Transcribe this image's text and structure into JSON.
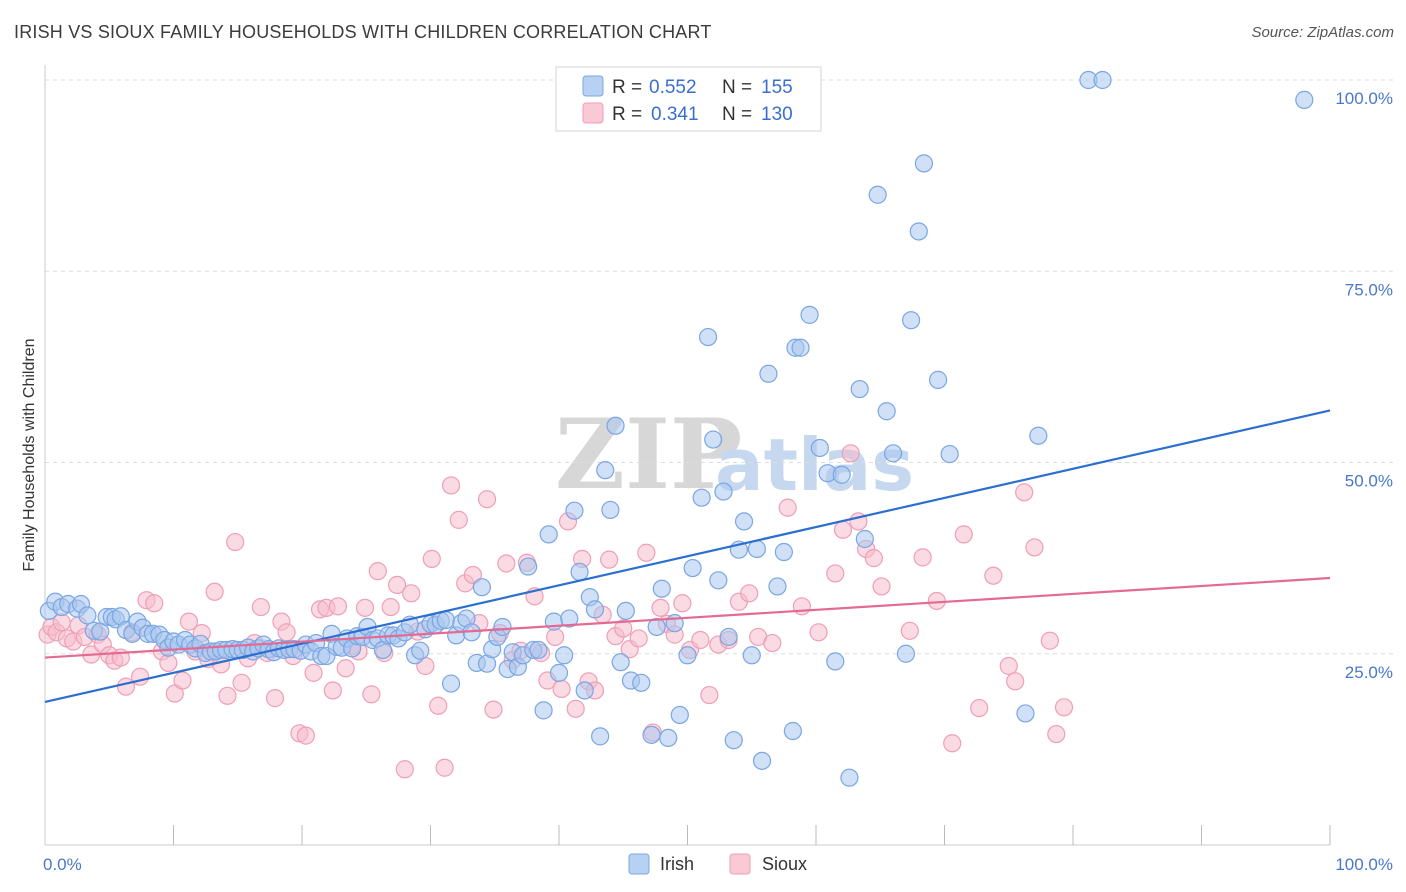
{
  "title": "IRISH VS SIOUX FAMILY HOUSEHOLDS WITH CHILDREN CORRELATION CHART",
  "source": "Source: ZipAtlas.com",
  "watermark": {
    "zip": "ZIP",
    "atlas": "atlas"
  },
  "legend": {
    "rows": [
      {
        "r_label": "R =",
        "r_value": "0.552",
        "n_label": "N =",
        "n_value": "155"
      },
      {
        "r_label": "R =",
        "r_value": "0.341",
        "n_label": "N =",
        "n_value": "130"
      }
    ]
  },
  "colors": {
    "irish_fill": "#a9c6ef",
    "irish_stroke": "#7aa6e3",
    "irish_line": "#2d6fd0",
    "sioux_fill": "#f6bccc",
    "sioux_stroke": "#ef9fb5",
    "sioux_line": "#e46a94",
    "grid": "#dddddd",
    "axis_text": "#4a78c9"
  },
  "chart_data": {
    "type": "scatter",
    "title": "IRISH VS SIOUX FAMILY HOUSEHOLDS WITH CHILDREN CORRELATION CHART",
    "xlabel": "",
    "ylabel": "Family Households with Children",
    "xlim": [
      0,
      100
    ],
    "ylim": [
      0,
      100
    ],
    "x_tick_labels": [
      "0.0%",
      "100.0%"
    ],
    "y_ticks": [
      25,
      50,
      75,
      100
    ],
    "y_tick_labels": [
      "25.0%",
      "50.0%",
      "75.0%",
      "100.0%"
    ],
    "grid": true,
    "legend_position": "top-center",
    "series": [
      {
        "name": "Irish",
        "trend": {
          "x": [
            0,
            100
          ],
          "y": [
            18.7,
            56.8
          ]
        },
        "points": [
          [
            0.3,
            30.6
          ],
          [
            0.8,
            31.8
          ],
          [
            1.3,
            31.1
          ],
          [
            1.8,
            31.5
          ],
          [
            2.5,
            30.9
          ],
          [
            2.8,
            31.5
          ],
          [
            3.3,
            30.0
          ],
          [
            3.8,
            28.0
          ],
          [
            4.3,
            27.9
          ],
          [
            4.8,
            29.8
          ],
          [
            5.2,
            29.8
          ],
          [
            5.5,
            29.5
          ],
          [
            5.9,
            29.9
          ],
          [
            6.3,
            28.1
          ],
          [
            6.8,
            27.6
          ],
          [
            7.2,
            29.2
          ],
          [
            7.6,
            28.4
          ],
          [
            8.0,
            27.6
          ],
          [
            8.4,
            27.6
          ],
          [
            8.9,
            27.5
          ],
          [
            9.3,
            26.8
          ],
          [
            9.6,
            25.8
          ],
          [
            10.0,
            26.6
          ],
          [
            10.4,
            26.2
          ],
          [
            10.9,
            26.8
          ],
          [
            11.3,
            26.2
          ],
          [
            11.7,
            25.7
          ],
          [
            12.1,
            26.3
          ],
          [
            12.5,
            25.1
          ],
          [
            12.9,
            25.3
          ],
          [
            13.3,
            25.3
          ],
          [
            13.7,
            25.5
          ],
          [
            14.1,
            25.5
          ],
          [
            14.6,
            25.6
          ],
          [
            15.0,
            25.5
          ],
          [
            15.4,
            25.5
          ],
          [
            15.8,
            25.8
          ],
          [
            16.2,
            25.3
          ],
          [
            16.6,
            25.7
          ],
          [
            17.0,
            26.2
          ],
          [
            17.4,
            25.6
          ],
          [
            17.8,
            25.2
          ],
          [
            18.2,
            25.7
          ],
          [
            18.6,
            25.5
          ],
          [
            19.0,
            25.6
          ],
          [
            19.4,
            25.6
          ],
          [
            19.9,
            25.4
          ],
          [
            20.3,
            26.2
          ],
          [
            20.7,
            25.3
          ],
          [
            21.1,
            26.4
          ],
          [
            21.5,
            24.7
          ],
          [
            21.9,
            24.7
          ],
          [
            22.3,
            27.6
          ],
          [
            22.7,
            25.9
          ],
          [
            23.1,
            25.8
          ],
          [
            23.5,
            27.0
          ],
          [
            23.9,
            25.7
          ],
          [
            24.3,
            27.3
          ],
          [
            24.7,
            27.2
          ],
          [
            25.1,
            28.5
          ],
          [
            25.5,
            26.8
          ],
          [
            25.9,
            27.0
          ],
          [
            26.3,
            25.5
          ],
          [
            26.7,
            27.4
          ],
          [
            27.1,
            27.4
          ],
          [
            27.5,
            27.0
          ],
          [
            28.0,
            27.8
          ],
          [
            28.4,
            28.8
          ],
          [
            28.8,
            24.8
          ],
          [
            29.2,
            25.4
          ],
          [
            29.6,
            28.2
          ],
          [
            30.0,
            28.9
          ],
          [
            30.4,
            28.8
          ],
          [
            30.8,
            29.3
          ],
          [
            31.2,
            29.4
          ],
          [
            31.6,
            21.1
          ],
          [
            32.0,
            27.4
          ],
          [
            32.4,
            29.0
          ],
          [
            32.8,
            29.6
          ],
          [
            33.2,
            27.8
          ],
          [
            33.6,
            23.8
          ],
          [
            34.0,
            33.7
          ],
          [
            34.4,
            23.7
          ],
          [
            34.8,
            25.6
          ],
          [
            35.2,
            27.2
          ],
          [
            35.6,
            28.5
          ],
          [
            36.0,
            23.0
          ],
          [
            36.4,
            25.2
          ],
          [
            36.8,
            23.3
          ],
          [
            37.2,
            24.8
          ],
          [
            37.6,
            36.4
          ],
          [
            38.0,
            25.5
          ],
          [
            38.4,
            25.5
          ],
          [
            38.8,
            17.6
          ],
          [
            39.2,
            40.6
          ],
          [
            39.6,
            29.2
          ],
          [
            40.0,
            22.5
          ],
          [
            40.4,
            24.8
          ],
          [
            40.8,
            29.6
          ],
          [
            41.2,
            43.7
          ],
          [
            41.6,
            35.7
          ],
          [
            42.0,
            20.2
          ],
          [
            42.4,
            32.4
          ],
          [
            42.8,
            30.8
          ],
          [
            43.2,
            14.2
          ],
          [
            43.6,
            49.0
          ],
          [
            44.0,
            43.8
          ],
          [
            44.4,
            54.8
          ],
          [
            44.8,
            23.9
          ],
          [
            45.2,
            30.6
          ],
          [
            45.6,
            21.5
          ],
          [
            46.4,
            21.2
          ],
          [
            47.2,
            14.4
          ],
          [
            47.6,
            28.5
          ],
          [
            48.0,
            33.5
          ],
          [
            48.5,
            14.0
          ],
          [
            49.0,
            29.0
          ],
          [
            49.4,
            17.0
          ],
          [
            50.0,
            24.8
          ],
          [
            50.4,
            36.2
          ],
          [
            51.1,
            45.4
          ],
          [
            51.6,
            66.4
          ],
          [
            52.0,
            53.0
          ],
          [
            52.4,
            34.6
          ],
          [
            52.8,
            46.2
          ],
          [
            53.2,
            27.2
          ],
          [
            53.6,
            13.7
          ],
          [
            54.0,
            38.6
          ],
          [
            54.4,
            42.3
          ],
          [
            55.0,
            24.8
          ],
          [
            55.4,
            38.7
          ],
          [
            55.8,
            11.0
          ],
          [
            56.3,
            61.6
          ],
          [
            57.0,
            33.8
          ],
          [
            57.5,
            38.3
          ],
          [
            58.2,
            14.9
          ],
          [
            58.4,
            65.0
          ],
          [
            58.8,
            65.0
          ],
          [
            59.5,
            69.3
          ],
          [
            60.3,
            51.9
          ],
          [
            60.9,
            48.6
          ],
          [
            61.5,
            24.0
          ],
          [
            62.0,
            48.4
          ],
          [
            62.6,
            8.8
          ],
          [
            63.4,
            59.6
          ],
          [
            63.8,
            40.0
          ],
          [
            64.8,
            85.0
          ],
          [
            65.5,
            56.7
          ],
          [
            66.0,
            51.2
          ],
          [
            67.0,
            25.0
          ],
          [
            67.4,
            68.6
          ],
          [
            68.0,
            80.2
          ],
          [
            68.4,
            89.1
          ],
          [
            69.5,
            60.8
          ],
          [
            70.4,
            51.1
          ],
          [
            76.3,
            17.2
          ],
          [
            77.3,
            53.5
          ],
          [
            81.2,
            100.0
          ],
          [
            82.3,
            100.0
          ],
          [
            98.0,
            97.4
          ]
        ]
      },
      {
        "name": "Sioux",
        "trend": {
          "x": [
            0,
            100
          ],
          "y": [
            24.5,
            34.9
          ]
        },
        "points": [
          [
            0.2,
            27.5
          ],
          [
            0.5,
            28.5
          ],
          [
            0.9,
            27.8
          ],
          [
            1.3,
            29.1
          ],
          [
            1.7,
            27.0
          ],
          [
            2.2,
            26.6
          ],
          [
            2.6,
            28.7
          ],
          [
            3.1,
            27.2
          ],
          [
            3.6,
            24.9
          ],
          [
            4.1,
            27.5
          ],
          [
            4.5,
            26.2
          ],
          [
            5.0,
            24.8
          ],
          [
            5.4,
            24.1
          ],
          [
            5.9,
            24.5
          ],
          [
            6.3,
            20.7
          ],
          [
            6.8,
            27.8
          ],
          [
            7.4,
            22.0
          ],
          [
            7.9,
            32.0
          ],
          [
            8.5,
            31.6
          ],
          [
            9.1,
            25.3
          ],
          [
            9.6,
            23.8
          ],
          [
            10.1,
            19.8
          ],
          [
            10.7,
            21.5
          ],
          [
            11.2,
            29.2
          ],
          [
            11.7,
            25.3
          ],
          [
            12.2,
            27.7
          ],
          [
            12.7,
            24.3
          ],
          [
            13.2,
            33.1
          ],
          [
            13.7,
            23.6
          ],
          [
            14.2,
            19.5
          ],
          [
            14.8,
            39.6
          ],
          [
            15.3,
            21.2
          ],
          [
            15.8,
            24.4
          ],
          [
            16.3,
            26.4
          ],
          [
            16.8,
            31.1
          ],
          [
            17.3,
            25.1
          ],
          [
            17.9,
            19.2
          ],
          [
            18.4,
            29.2
          ],
          [
            18.8,
            27.8
          ],
          [
            19.3,
            24.7
          ],
          [
            19.8,
            14.6
          ],
          [
            20.3,
            14.3
          ],
          [
            20.9,
            22.5
          ],
          [
            21.4,
            30.8
          ],
          [
            21.9,
            31.0
          ],
          [
            22.4,
            20.2
          ],
          [
            22.8,
            31.2
          ],
          [
            23.4,
            23.1
          ],
          [
            23.9,
            26.0
          ],
          [
            24.4,
            25.3
          ],
          [
            24.9,
            31.0
          ],
          [
            25.4,
            19.7
          ],
          [
            25.9,
            35.8
          ],
          [
            26.4,
            25.1
          ],
          [
            26.9,
            31.1
          ],
          [
            27.4,
            34.0
          ],
          [
            28.0,
            9.9
          ],
          [
            28.5,
            32.9
          ],
          [
            29.0,
            27.9
          ],
          [
            29.6,
            23.4
          ],
          [
            30.1,
            37.4
          ],
          [
            30.6,
            18.2
          ],
          [
            31.1,
            10.1
          ],
          [
            31.6,
            47.0
          ],
          [
            32.2,
            42.5
          ],
          [
            32.7,
            34.2
          ],
          [
            33.3,
            35.3
          ],
          [
            33.8,
            29.0
          ],
          [
            34.4,
            45.2
          ],
          [
            34.9,
            17.7
          ],
          [
            35.4,
            27.7
          ],
          [
            35.9,
            36.8
          ],
          [
            36.4,
            24.2
          ],
          [
            37.0,
            25.4
          ],
          [
            37.5,
            36.9
          ],
          [
            38.1,
            32.5
          ],
          [
            38.6,
            25.1
          ],
          [
            39.1,
            21.5
          ],
          [
            39.7,
            27.2
          ],
          [
            40.2,
            20.4
          ],
          [
            40.7,
            42.3
          ],
          [
            41.3,
            17.8
          ],
          [
            41.8,
            37.4
          ],
          [
            42.3,
            21.4
          ],
          [
            42.8,
            20.2
          ],
          [
            43.4,
            30.1
          ],
          [
            43.9,
            37.3
          ],
          [
            44.4,
            27.3
          ],
          [
            45.0,
            28.3
          ],
          [
            45.5,
            25.6
          ],
          [
            46.2,
            27.0
          ],
          [
            46.8,
            38.2
          ],
          [
            47.3,
            14.7
          ],
          [
            47.9,
            31.0
          ],
          [
            48.4,
            28.9
          ],
          [
            49.0,
            27.5
          ],
          [
            49.6,
            31.6
          ],
          [
            50.2,
            25.5
          ],
          [
            51.0,
            26.8
          ],
          [
            51.7,
            19.6
          ],
          [
            52.4,
            26.2
          ],
          [
            53.2,
            26.8
          ],
          [
            54.0,
            31.8
          ],
          [
            54.8,
            32.9
          ],
          [
            55.5,
            27.2
          ],
          [
            56.6,
            26.4
          ],
          [
            57.8,
            44.1
          ],
          [
            58.9,
            31.2
          ],
          [
            60.2,
            27.8
          ],
          [
            61.5,
            35.5
          ],
          [
            62.1,
            41.2
          ],
          [
            62.7,
            51.2
          ],
          [
            63.3,
            42.3
          ],
          [
            63.9,
            38.7
          ],
          [
            64.5,
            37.5
          ],
          [
            65.1,
            33.8
          ],
          [
            67.3,
            28.0
          ],
          [
            68.3,
            37.6
          ],
          [
            69.4,
            31.9
          ],
          [
            70.6,
            13.3
          ],
          [
            71.5,
            40.6
          ],
          [
            72.7,
            17.9
          ],
          [
            73.8,
            35.2
          ],
          [
            75.0,
            23.4
          ],
          [
            75.5,
            21.4
          ],
          [
            76.2,
            46.1
          ],
          [
            77.0,
            38.9
          ],
          [
            78.2,
            26.7
          ],
          [
            78.7,
            14.5
          ],
          [
            79.3,
            18.0
          ]
        ]
      }
    ]
  },
  "bottom_legend": [
    {
      "label": "Irish"
    },
    {
      "label": "Sioux"
    }
  ]
}
